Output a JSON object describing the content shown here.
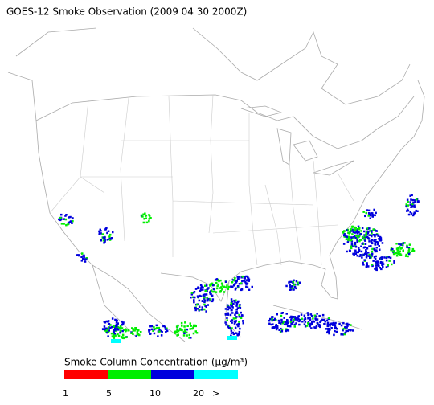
{
  "title": "GOES-12 Smoke Observation (2009 04 30  2000Z)",
  "legend": {
    "label": "Smoke Column Concentration (μg/m³)",
    "colors": [
      "#ff0000",
      "#00ee00",
      "#0000dd",
      "#00ffff"
    ],
    "ticks": [
      "1",
      "5",
      "10",
      "20",
      ">"
    ]
  }
}
